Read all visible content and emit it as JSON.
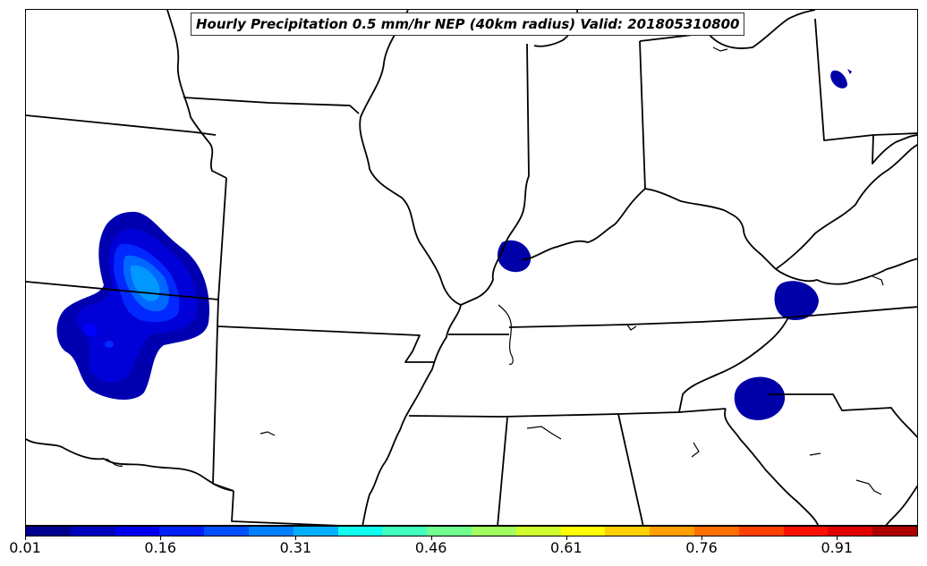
{
  "title": "Hourly Precipitation 0.5 mm/hr NEP (40km radius) Valid: 201805310800",
  "colors": {
    "boundary": "#000000",
    "background": "#ffffff",
    "colorbar": [
      "#00008f",
      "#0000bf",
      "#0000ef",
      "#0020ff",
      "#0050ff",
      "#0080ff",
      "#00b0ff",
      "#10ffef",
      "#40ffbf",
      "#70ff8f",
      "#a0ff5f",
      "#d0ff2f",
      "#ffff00",
      "#ffcf00",
      "#ff9f00",
      "#ff6f00",
      "#ff3f00",
      "#ff0f00",
      "#df0000",
      "#af0000"
    ]
  },
  "colorbar": {
    "min": 0.01,
    "max": 1.0,
    "tick_labels": [
      "0.01",
      "0.16",
      "0.31",
      "0.46",
      "0.61",
      "0.76",
      "0.91"
    ]
  },
  "precip_areas": [
    {
      "name": "oklahoma-kansas-cluster",
      "max_probability": 0.31
    },
    {
      "name": "southern-illinois-indiana",
      "max_probability": 0.06
    },
    {
      "name": "southwest-virginia",
      "max_probability": 0.06
    },
    {
      "name": "northwest-south-carolina",
      "max_probability": 0.06
    },
    {
      "name": "northern-pennsylvania",
      "max_probability": 0.06
    }
  ]
}
